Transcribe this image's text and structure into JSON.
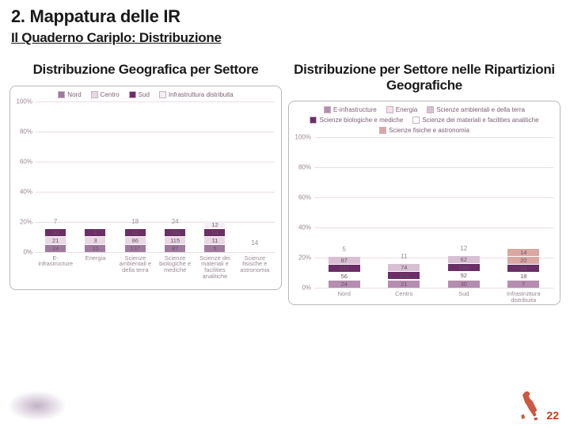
{
  "section_title": "2. Mappatura delle IR",
  "subtitle": "Il Quaderno Cariplo: Distribuzione",
  "page_number": "22",
  "colors": {
    "nord": "#a07a9e",
    "centro": "#e9d7e4",
    "sud": "#6b2e66",
    "infra": "#f5eef3",
    "einfra": "#b58db0",
    "energia": "#f2dfec",
    "sci_amb": "#d7c0d2",
    "sci_bio": "#6b2e66",
    "sci_mat": "#ffffff",
    "sci_fis": "#dba7a2",
    "grid": "#e9dde6",
    "axis_text": "#9a8795",
    "bar_border": "#c7b2c2"
  },
  "chart_left": {
    "title": "Distribuzione Geografica per Settore",
    "type": "stacked_bar_100",
    "ylim": [
      0,
      100
    ],
    "ytick_step": 20,
    "legend": [
      {
        "label": "Nord",
        "color_key": "nord"
      },
      {
        "label": "Centro",
        "color_key": "centro"
      },
      {
        "label": "Sud",
        "color_key": "sud"
      },
      {
        "label": "Infrastruttura distribuita",
        "color_key": "infra"
      }
    ],
    "categories": [
      "E-\ninfrastructure",
      "Energia",
      "Scienze\nambientali e\ndella terra",
      "Scienze\nbiologiche e\nmediche",
      "Scienze dei\nmateriali e\nfacilities\nanalitiche",
      "Scienze\nfisische e\nastronomia"
    ],
    "top_labels": [
      "7",
      "",
      "18",
      "24",
      "",
      "14"
    ],
    "stacks": [
      [
        {
          "v": 24,
          "c": "nord"
        },
        {
          "v": 21,
          "c": "centro"
        },
        {
          "v": 30,
          "c": "sud"
        },
        {
          "v": 7,
          "c": "infra",
          "hide": true
        }
      ],
      [
        {
          "v": 10,
          "c": "nord"
        },
        {
          "v": 3,
          "c": "centro"
        },
        {
          "v": 4,
          "c": "sud"
        }
      ],
      [
        {
          "v": 137,
          "c": "nord"
        },
        {
          "v": 86,
          "c": "centro"
        },
        {
          "v": 92,
          "c": "sud"
        },
        {
          "v": 18,
          "c": "infra",
          "hide": true
        }
      ],
      [
        {
          "v": 87,
          "c": "nord"
        },
        {
          "v": 115,
          "c": "centro"
        },
        {
          "v": 166,
          "c": "sud"
        },
        {
          "v": 24,
          "c": "infra",
          "hide": true
        }
      ],
      [
        {
          "v": 5,
          "c": "nord"
        },
        {
          "v": 11,
          "c": "centro"
        },
        {
          "v": 24,
          "c": "sud"
        },
        {
          "v": 12,
          "c": "infra"
        }
      ],
      [
        {
          "v": 0,
          "c": "nord",
          "hide": true
        },
        {
          "v": 0,
          "c": "centro",
          "hide": true
        },
        {
          "v": 0,
          "c": "sud",
          "hide": true
        },
        {
          "v": 14,
          "c": "infra",
          "hide": true
        }
      ]
    ]
  },
  "chart_right": {
    "title": "Distribuzione per Settore nelle Ripartizioni Geografiche",
    "type": "stacked_bar_100",
    "ylim": [
      0,
      100
    ],
    "ytick_step": 20,
    "legend": [
      {
        "label": "E-infrastructure",
        "color_key": "einfra"
      },
      {
        "label": "Energia",
        "color_key": "energia"
      },
      {
        "label": "Scienze ambientali e della terra",
        "color_key": "sci_amb"
      },
      {
        "label": "Scienze biologiche e mediche",
        "color_key": "sci_bio"
      },
      {
        "label": "Scienze dei materiali e facilities analitiche",
        "color_key": "sci_mat"
      },
      {
        "label": "Scienze fisiche e astronomia",
        "color_key": "sci_fis"
      }
    ],
    "categories": [
      "Nord",
      "Centro",
      "Sud",
      "Infrastruttura\ndistribuita"
    ],
    "top_labels": [
      "5",
      "11",
      "12",
      ""
    ],
    "stacks": [
      [
        {
          "v": 24,
          "c": "einfra"
        },
        {
          "v": 56,
          "c": "sci_mat",
          "lbl": "56"
        },
        {
          "v": 137,
          "c": "sci_bio"
        },
        {
          "v": 87,
          "c": "sci_amb"
        },
        {
          "v": 5,
          "c": "energia",
          "hide": true
        }
      ],
      [
        {
          "v": 21,
          "c": "einfra"
        },
        {
          "v": 3,
          "c": "sci_mat"
        },
        {
          "v": 115,
          "c": "sci_bio"
        },
        {
          "v": 74,
          "c": "sci_amb"
        },
        {
          "v": 11,
          "c": "energia",
          "hide": true
        }
      ],
      [
        {
          "v": 30,
          "c": "einfra"
        },
        {
          "v": 4,
          "c": "sci_mat"
        },
        {
          "v": 92,
          "c": "sci_mat",
          "lbl": "92"
        },
        {
          "v": 166,
          "c": "sci_bio"
        },
        {
          "v": 62,
          "c": "sci_amb"
        },
        {
          "v": 12,
          "c": "energia",
          "hide": true
        }
      ],
      [
        {
          "v": 7,
          "c": "einfra"
        },
        {
          "v": 18,
          "c": "sci_mat",
          "lbl": "18"
        },
        {
          "v": 24,
          "c": "sci_bio"
        },
        {
          "v": 20,
          "c": "sci_fis"
        },
        {
          "v": 14,
          "c": "sci_fis"
        }
      ]
    ]
  }
}
